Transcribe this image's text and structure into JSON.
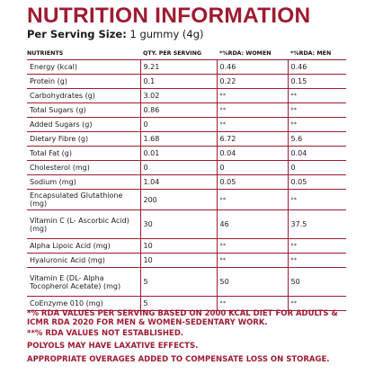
{
  "title": "NUTRITION INFORMATION",
  "serving": {
    "label": "Per Serving Size:",
    "value": " 1 gummy (4g)"
  },
  "table": {
    "headers": [
      "NUTRIENTS",
      "QTY. PER SERVING",
      "*%RDA: WOMEN",
      "*%RDA: MEN"
    ],
    "rows": [
      {
        "name": "Energy (kcal)",
        "qty": "9.21",
        "women": "0.46",
        "men": "0.46"
      },
      {
        "name": "Protein (g)",
        "qty": "0.1",
        "women": "0.22",
        "men": "0.15"
      },
      {
        "name": "Carbohydrates (g)",
        "qty": "3.02",
        "women": "**",
        "men": "**"
      },
      {
        "name": "Total Sugars (g)",
        "qty": "0.86",
        "women": "**",
        "men": "**"
      },
      {
        "name": "Added Sugars (g)",
        "qty": "0",
        "women": "**",
        "men": "**"
      },
      {
        "name": "Dietary Fibre (g)",
        "qty": "1.68",
        "women": "6.72",
        "men": "5.6"
      },
      {
        "name": "Total Fat (g)",
        "qty": "0.01",
        "women": "0.04",
        "men": "0.04"
      },
      {
        "name": "Cholesterol (mg)",
        "qty": "0",
        "women": "0",
        "men": "0"
      },
      {
        "name": "Sodium (mg)",
        "qty": "1.04",
        "women": "0.05",
        "men": "0.05"
      },
      {
        "name": "Encapsulated Glutathione (mg)",
        "qty": "200",
        "women": "**",
        "men": "**"
      },
      {
        "name": "Vitamin C (L- Ascorbic Acid) (mg)",
        "qty": "30",
        "women": "46",
        "men": "37.5"
      },
      {
        "name": "Alpha Lipoic Acid (mg)",
        "qty": "10",
        "women": "**",
        "men": "**"
      },
      {
        "name": "Hyaluronic Acid (mg)",
        "qty": "10",
        "women": "**",
        "men": "**"
      },
      {
        "name": "Vitamin E (DL- Alpha Tocopherol Acetate) (mg)",
        "qty": "5",
        "women": "50",
        "men": "50"
      },
      {
        "name": "CoEnzyme 010 (mg)",
        "qty": "5",
        "women": "**",
        "men": "**"
      }
    ]
  },
  "notes": {
    "rda": "*% RDA VALUES PER SERVING BASED ON 2000 KCAL DIET FOR ADULTS & ICMR RDA 2020 FOR MEN & WOMEN-SEDENTARY WORK.",
    "not_established": "**% RDA VALUES NOT ESTABLISHED.",
    "polyols": "POLYOLS MAY HAVE LAXATIVE EFFECTS.",
    "overages": "APPROPRIATE OVERAGES ADDED TO COMPENSATE LOSS ON STORAGE."
  },
  "colors": {
    "brand": "#9e1b32",
    "text": "#1a1a1a"
  }
}
